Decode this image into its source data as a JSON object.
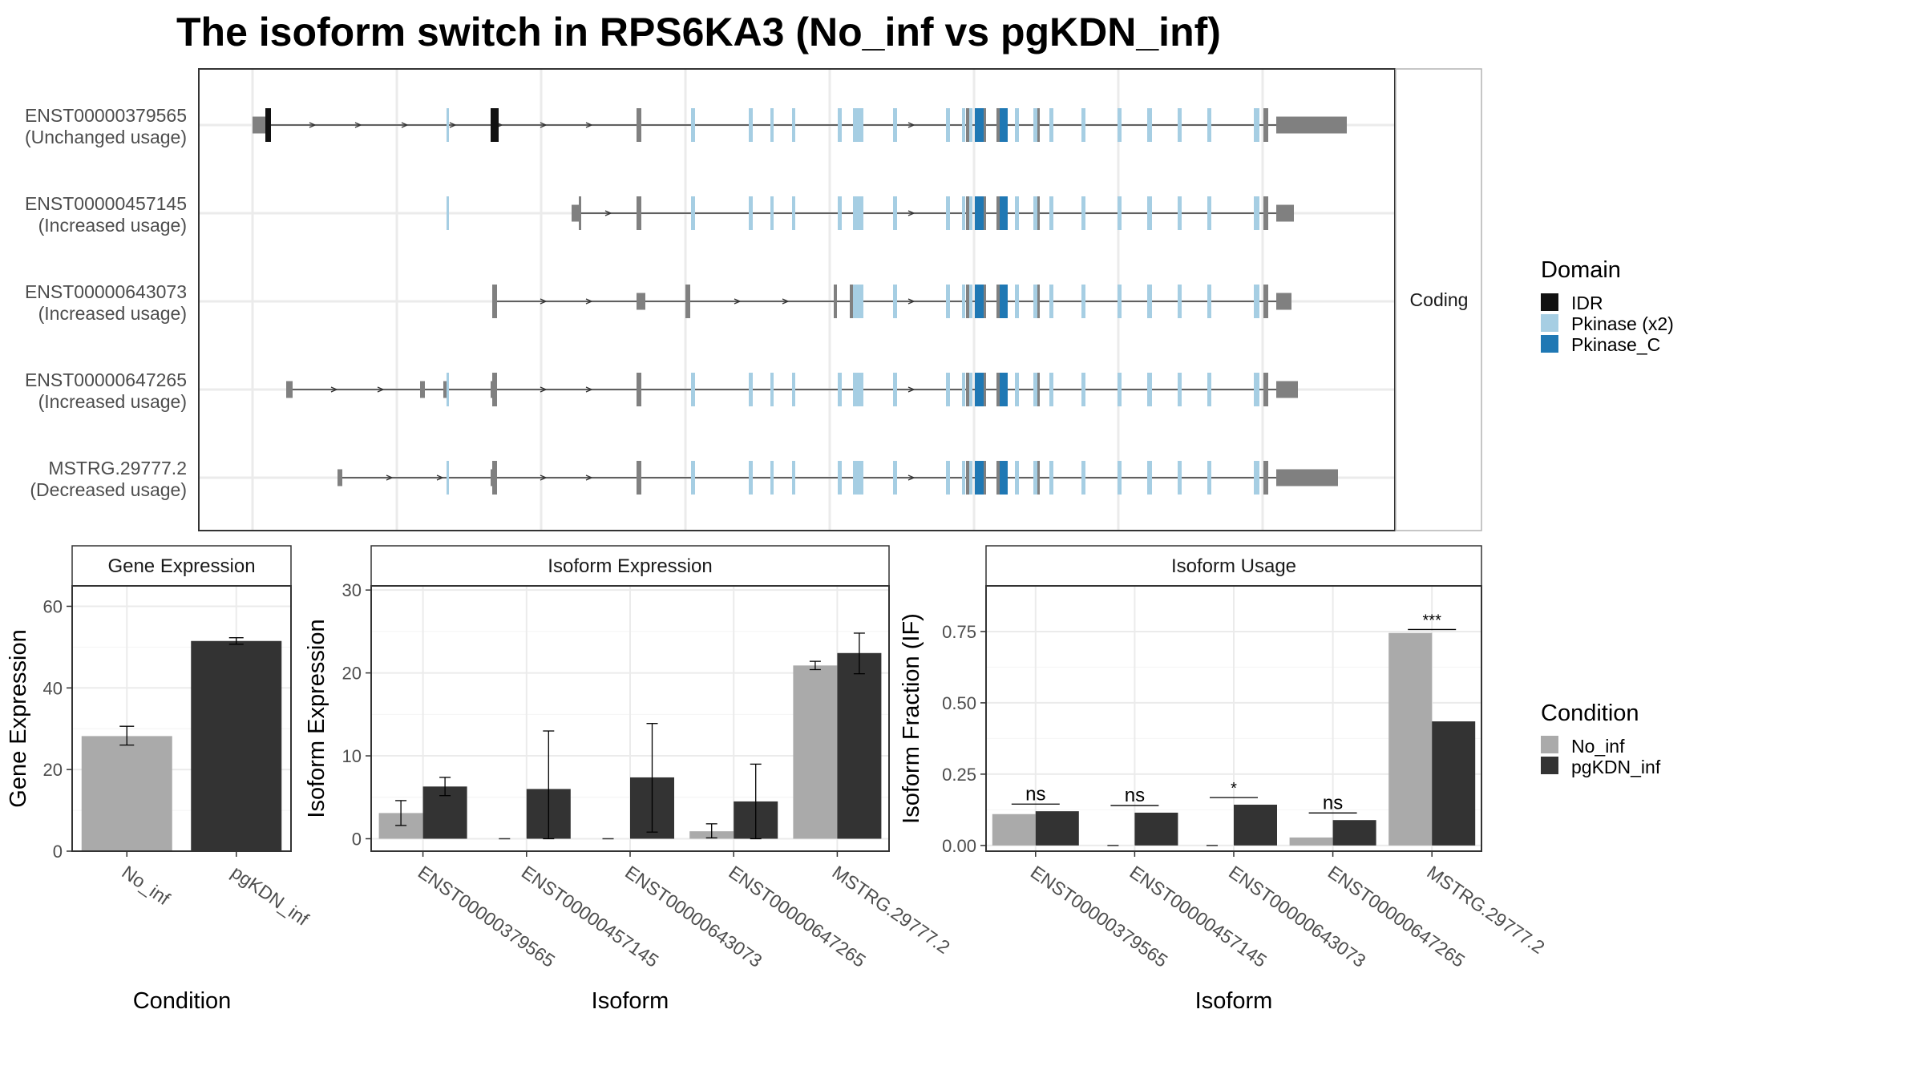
{
  "title": "The isoform switch in RPS6KA3 (No_inf vs pgKDN_inf)",
  "colors": {
    "IDR": "#111111",
    "Pkinase (x2)": "#a6cee3",
    "Pkinase_C": "#1f78b4",
    "utr": "#808080",
    "No_inf": "#aaaaaa",
    "pgKDN_inf": "#333333",
    "grid": "#ebebeb",
    "strip": "#ffffff"
  },
  "transcripts": {
    "strip_label": "Coding",
    "isoforms": [
      {
        "name": "ENST00000379565",
        "usage": "(Unchanged usage)"
      },
      {
        "name": "ENST00000457145",
        "usage": "(Increased usage)"
      },
      {
        "name": "ENST00000643073",
        "usage": "(Increased usage)"
      },
      {
        "name": "ENST00000647265",
        "usage": "(Increased usage)"
      },
      {
        "name": "MSTRG.29777.2",
        "usage": "(Decreased usage)"
      }
    ]
  },
  "domain_legend": {
    "title": "Domain",
    "items": [
      {
        "label": "IDR",
        "color": "#111111"
      },
      {
        "label": "Pkinase (x2)",
        "color": "#a6cee3"
      },
      {
        "label": "Pkinase_C",
        "color": "#1f78b4"
      }
    ]
  },
  "condition_legend": {
    "title": "Condition",
    "items": [
      {
        "label": "No_inf",
        "color": "#aaaaaa"
      },
      {
        "label": "pgKDN_inf",
        "color": "#333333"
      }
    ]
  },
  "chart_data": [
    {
      "type": "bar",
      "title": "Gene Expression",
      "xlabel": "Condition",
      "ylabel": "Gene Expression",
      "categories": [
        "No_inf",
        "pgKDN_inf"
      ],
      "values": [
        28.2,
        51.5
      ],
      "errors": [
        [
          26.0,
          30.6
        ],
        [
          50.7,
          52.3
        ]
      ],
      "ylim": [
        0,
        65
      ],
      "yticks": [
        0,
        20,
        40,
        60
      ]
    },
    {
      "type": "bar",
      "title": "Isoform Expression",
      "xlabel": "Isoform",
      "ylabel": "Isoform Expression",
      "categories": [
        "ENST00000379565",
        "ENST00000457145",
        "ENST00000643073",
        "ENST00000647265",
        "MSTRG.29777.2"
      ],
      "series": [
        {
          "name": "No_inf",
          "values": [
            3.1,
            0.0,
            0.0,
            0.9,
            20.9
          ],
          "errors": [
            [
              1.6,
              4.6
            ],
            null,
            null,
            [
              0.1,
              1.8
            ],
            [
              20.4,
              21.4
            ]
          ]
        },
        {
          "name": "pgKDN_inf",
          "values": [
            6.3,
            6.0,
            7.4,
            4.5,
            22.4
          ],
          "errors": [
            [
              5.2,
              7.4
            ],
            [
              0.0,
              13.0
            ],
            [
              0.8,
              13.9
            ],
            [
              0.0,
              9.0
            ],
            [
              19.9,
              24.8
            ]
          ]
        }
      ],
      "ylim": [
        -1.5,
        30.5
      ],
      "yticks": [
        0,
        10,
        20,
        30
      ]
    },
    {
      "type": "bar",
      "title": "Isoform Usage",
      "xlabel": "Isoform",
      "ylabel": "Isoform Fraction (IF)",
      "categories": [
        "ENST00000379565",
        "ENST00000457145",
        "ENST00000643073",
        "ENST00000647265",
        "MSTRG.29777.2"
      ],
      "series": [
        {
          "name": "No_inf",
          "values": [
            0.11,
            0.0,
            0.0,
            0.028,
            0.745
          ]
        },
        {
          "name": "pgKDN_inf",
          "values": [
            0.12,
            0.115,
            0.143,
            0.089,
            0.435
          ]
        }
      ],
      "significance": [
        "ns",
        "ns",
        "*",
        "ns",
        "***"
      ],
      "ylim": [
        -0.02,
        0.91
      ],
      "yticks": [
        "0.00",
        "0.25",
        "0.50",
        "0.75"
      ]
    }
  ]
}
